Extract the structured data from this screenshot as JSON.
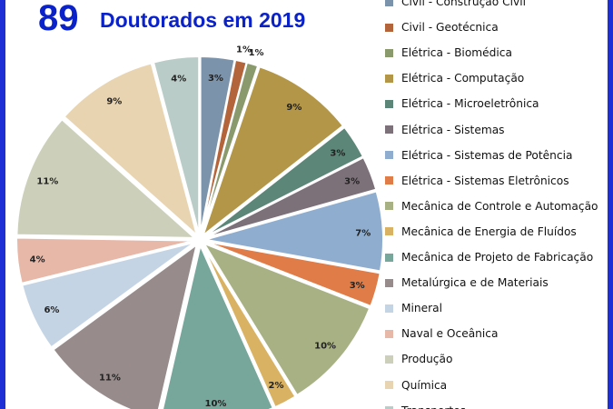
{
  "header": {
    "count": "89",
    "title": "Doutorados em 2019"
  },
  "chart_data": {
    "type": "pie",
    "title": "Doutorados em 2019",
    "slices": [
      {
        "label": "Civil - Construção Civil",
        "value": 3,
        "pct_label": "3%",
        "color": "#7b93ab"
      },
      {
        "label": "Civil - Geotécnica",
        "value": 1,
        "pct_label": "1%",
        "color": "#b4643a"
      },
      {
        "label": "Elétrica - Biomédica",
        "value": 1,
        "pct_label": "1%",
        "color": "#8a9a6c"
      },
      {
        "label": "Elétrica - Computação",
        "value": 9,
        "pct_label": "9%",
        "color": "#b39648"
      },
      {
        "label": "Elétrica - Microeletrônica",
        "value": 3,
        "pct_label": "3%",
        "color": "#5c8678"
      },
      {
        "label": "Elétrica - Sistemas",
        "value": 3,
        "pct_label": "3%",
        "color": "#7d7179"
      },
      {
        "label": "Elétrica - Sistemas de Potência",
        "value": 7,
        "pct_label": "7%",
        "color": "#8faecf"
      },
      {
        "label": "Elétrica - Sistemas Eletrônicos",
        "value": 3,
        "pct_label": "3%",
        "color": "#df7c48"
      },
      {
        "label": "Mecânica de Controle e Automação",
        "value": 10,
        "pct_label": "10%",
        "color": "#a8b184"
      },
      {
        "label": "Mecânica de Energia de Fluídos",
        "value": 2,
        "pct_label": "2%",
        "color": "#d9b263"
      },
      {
        "label": "Mecânica de Projeto de Fabricação",
        "value": 10,
        "pct_label": "10%",
        "color": "#76a79a"
      },
      {
        "label": "Metalúrgica e de Materiais",
        "value": 11,
        "pct_label": "11%",
        "color": "#978b8b"
      },
      {
        "label": "Mineral",
        "value": 6,
        "pct_label": "6%",
        "color": "#c4d4e5"
      },
      {
        "label": "Naval e Oceânica",
        "value": 4,
        "pct_label": "4%",
        "color": "#e7b7a8"
      },
      {
        "label": "Produção",
        "value": 11,
        "pct_label": "11%",
        "color": "#cccfb9"
      },
      {
        "label": "Química",
        "value": 9,
        "pct_label": "9%",
        "color": "#e8d4b1"
      },
      {
        "label": "Transportes",
        "value": 4,
        "pct_label": "4%",
        "color": "#b9ccc7"
      }
    ],
    "legend_position": "right"
  }
}
